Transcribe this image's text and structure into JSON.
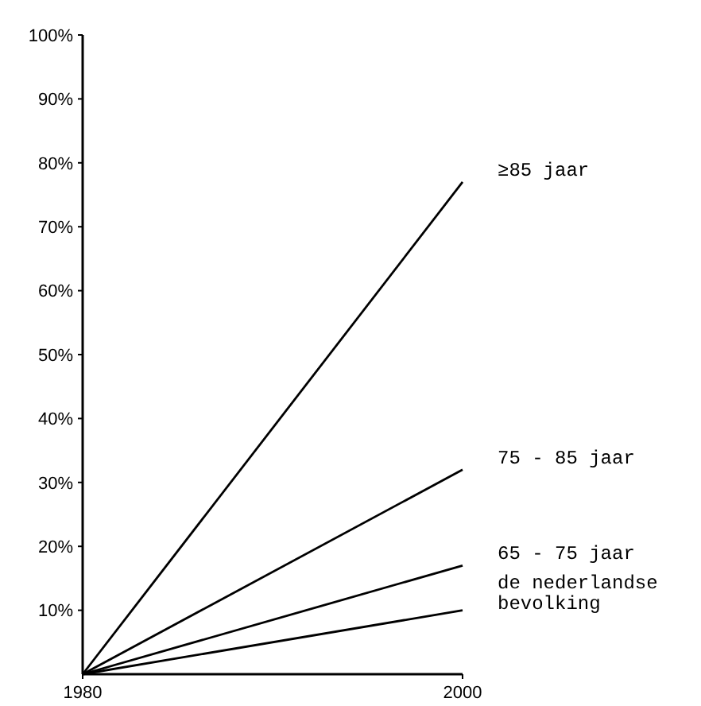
{
  "chart_data": {
    "type": "line",
    "x": [
      1980,
      2000
    ],
    "xlim": [
      1980,
      2000
    ],
    "xticks": [
      1980,
      2000
    ],
    "ylim": [
      0,
      100
    ],
    "yticks": [
      {
        "value": 10,
        "label": "10%"
      },
      {
        "value": 20,
        "label": "20%"
      },
      {
        "value": 30,
        "label": "30%"
      },
      {
        "value": 40,
        "label": "40%"
      },
      {
        "value": 50,
        "label": "50%"
      },
      {
        "value": 60,
        "label": "60%"
      },
      {
        "value": 70,
        "label": "70%"
      },
      {
        "value": 80,
        "label": "80%"
      },
      {
        "value": 90,
        "label": "90%"
      },
      {
        "value": 100,
        "label": "100%"
      }
    ],
    "series": [
      {
        "name": "≥85 jaar",
        "color": "#000000",
        "values": [
          0,
          77
        ]
      },
      {
        "name": "75 - 85 jaar",
        "color": "#000000",
        "values": [
          0,
          32
        ]
      },
      {
        "name": "65 - 75 jaar",
        "color": "#000000",
        "values": [
          0,
          17
        ]
      },
      {
        "name": "de nederlandse bevolking",
        "color": "#000000",
        "values": [
          0,
          10
        ]
      }
    ],
    "grid": false,
    "marker": "none",
    "line_style": "solid"
  }
}
